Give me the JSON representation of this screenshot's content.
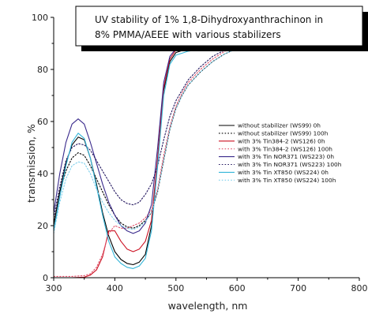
{
  "chart_data": {
    "type": "line",
    "title_lines": [
      "UV stability of 1% 1,8-Dihydroxyanthrachinon in",
      "8%  PMMA/AEEE  with various stabilizers"
    ],
    "xlabel": "wavelength, nm",
    "ylabel": "transmission, %",
    "xlim": [
      300,
      800
    ],
    "ylim": [
      0,
      100
    ],
    "xticks": [
      300,
      400,
      500,
      600,
      700,
      800
    ],
    "yticks": [
      0,
      20,
      40,
      60,
      80,
      100
    ],
    "legend_position": "right",
    "grid": false,
    "series": [
      {
        "name": "without stabilizer (WS99) 0h",
        "color": "#000000",
        "dash": "solid",
        "points": [
          [
            300,
            20
          ],
          [
            310,
            33
          ],
          [
            320,
            44
          ],
          [
            330,
            51
          ],
          [
            340,
            54
          ],
          [
            350,
            53
          ],
          [
            360,
            46
          ],
          [
            370,
            36
          ],
          [
            380,
            25
          ],
          [
            390,
            16
          ],
          [
            400,
            10
          ],
          [
            410,
            7
          ],
          [
            420,
            5.5
          ],
          [
            430,
            5
          ],
          [
            440,
            6
          ],
          [
            450,
            9
          ],
          [
            460,
            20
          ],
          [
            470,
            45
          ],
          [
            480,
            72
          ],
          [
            490,
            83
          ],
          [
            500,
            86.5
          ],
          [
            520,
            88
          ],
          [
            560,
            89.5
          ],
          [
            600,
            90.5
          ],
          [
            650,
            91
          ],
          [
            700,
            91.3
          ],
          [
            750,
            91.5
          ],
          [
            800,
            91.5
          ]
        ]
      },
      {
        "name": "without stabilizer (WS99) 100h",
        "color": "#000000",
        "dash": "dotted",
        "points": [
          [
            300,
            21
          ],
          [
            310,
            33
          ],
          [
            320,
            41
          ],
          [
            330,
            46
          ],
          [
            340,
            48
          ],
          [
            350,
            47
          ],
          [
            360,
            43
          ],
          [
            370,
            38
          ],
          [
            380,
            33
          ],
          [
            390,
            28
          ],
          [
            400,
            24
          ],
          [
            410,
            21
          ],
          [
            420,
            19.5
          ],
          [
            430,
            19
          ],
          [
            440,
            20
          ],
          [
            450,
            22
          ],
          [
            460,
            25
          ],
          [
            470,
            33
          ],
          [
            480,
            45
          ],
          [
            490,
            57
          ],
          [
            500,
            65
          ],
          [
            510,
            70
          ],
          [
            520,
            74
          ],
          [
            540,
            79
          ],
          [
            560,
            83
          ],
          [
            580,
            86
          ],
          [
            600,
            88
          ],
          [
            650,
            89.5
          ],
          [
            700,
            90
          ],
          [
            750,
            90.3
          ],
          [
            800,
            90.5
          ]
        ]
      },
      {
        "name": "with 3% Tin384-2 (WS126) 0h",
        "color": "#cc1122",
        "dash": "solid",
        "points": [
          [
            300,
            0
          ],
          [
            330,
            0
          ],
          [
            350,
            0.2
          ],
          [
            360,
            1
          ],
          [
            370,
            3
          ],
          [
            380,
            8
          ],
          [
            390,
            18
          ],
          [
            400,
            18
          ],
          [
            410,
            14
          ],
          [
            420,
            11
          ],
          [
            430,
            10
          ],
          [
            440,
            11
          ],
          [
            450,
            14
          ],
          [
            460,
            22
          ],
          [
            470,
            46
          ],
          [
            480,
            73
          ],
          [
            490,
            84
          ],
          [
            500,
            87.5
          ],
          [
            520,
            89
          ],
          [
            560,
            90
          ],
          [
            600,
            91
          ],
          [
            650,
            91.5
          ],
          [
            700,
            91.8
          ],
          [
            750,
            92
          ],
          [
            800,
            92
          ]
        ]
      },
      {
        "name": "with 3% Tin384-2 (WS126) 100h",
        "color": "#e0506a",
        "dash": "dotted",
        "points": [
          [
            300,
            0.5
          ],
          [
            330,
            0.5
          ],
          [
            350,
            0.8
          ],
          [
            360,
            1.5
          ],
          [
            370,
            4
          ],
          [
            380,
            9
          ],
          [
            390,
            17
          ],
          [
            400,
            20
          ],
          [
            410,
            19
          ],
          [
            420,
            19
          ],
          [
            430,
            20
          ],
          [
            440,
            21
          ],
          [
            450,
            23
          ],
          [
            460,
            26
          ],
          [
            470,
            34
          ],
          [
            480,
            47
          ],
          [
            490,
            58
          ],
          [
            500,
            66
          ],
          [
            510,
            71
          ],
          [
            520,
            75
          ],
          [
            540,
            80
          ],
          [
            560,
            84
          ],
          [
            580,
            87
          ],
          [
            600,
            88.5
          ],
          [
            650,
            90
          ],
          [
            700,
            90.5
          ],
          [
            750,
            90.8
          ],
          [
            800,
            91
          ]
        ]
      },
      {
        "name": "with 3% Tin NOR371 (WS223) 0h",
        "color": "#3a2a8c",
        "dash": "solid",
        "points": [
          [
            300,
            25
          ],
          [
            310,
            40
          ],
          [
            320,
            52
          ],
          [
            330,
            59
          ],
          [
            340,
            61
          ],
          [
            350,
            59
          ],
          [
            360,
            52
          ],
          [
            370,
            44
          ],
          [
            380,
            36
          ],
          [
            390,
            29
          ],
          [
            400,
            24
          ],
          [
            410,
            20
          ],
          [
            420,
            18
          ],
          [
            430,
            17
          ],
          [
            440,
            18
          ],
          [
            450,
            21
          ],
          [
            460,
            28
          ],
          [
            470,
            50
          ],
          [
            480,
            75
          ],
          [
            490,
            85
          ],
          [
            500,
            88
          ],
          [
            520,
            89.5
          ],
          [
            560,
            90.5
          ],
          [
            600,
            91.5
          ],
          [
            650,
            92
          ],
          [
            700,
            92
          ],
          [
            750,
            92.2
          ],
          [
            800,
            92.2
          ]
        ]
      },
      {
        "name": "with 3% Tin NOR371 (WS223) 100h",
        "color": "#241860",
        "dash": "dotted",
        "points": [
          [
            300,
            23
          ],
          [
            310,
            35
          ],
          [
            320,
            45
          ],
          [
            330,
            50
          ],
          [
            340,
            51.5
          ],
          [
            350,
            51
          ],
          [
            360,
            49
          ],
          [
            370,
            45
          ],
          [
            380,
            41
          ],
          [
            390,
            37
          ],
          [
            400,
            33
          ],
          [
            410,
            30
          ],
          [
            420,
            28.5
          ],
          [
            430,
            28
          ],
          [
            440,
            29
          ],
          [
            450,
            32
          ],
          [
            460,
            36
          ],
          [
            470,
            43
          ],
          [
            480,
            53
          ],
          [
            490,
            62
          ],
          [
            500,
            68
          ],
          [
            510,
            72
          ],
          [
            520,
            76
          ],
          [
            540,
            81
          ],
          [
            560,
            85
          ],
          [
            580,
            87.5
          ],
          [
            600,
            89
          ],
          [
            650,
            90.5
          ],
          [
            700,
            91
          ],
          [
            750,
            91.2
          ],
          [
            800,
            91.3
          ]
        ]
      },
      {
        "name": "with 3% Tin XT850 (WS224) 0h",
        "color": "#33b5d8",
        "dash": "solid",
        "points": [
          [
            300,
            18
          ],
          [
            310,
            31
          ],
          [
            320,
            43
          ],
          [
            330,
            52
          ],
          [
            340,
            55.5
          ],
          [
            350,
            53.5
          ],
          [
            360,
            46
          ],
          [
            370,
            35
          ],
          [
            380,
            24
          ],
          [
            390,
            14
          ],
          [
            400,
            8
          ],
          [
            410,
            5.5
          ],
          [
            420,
            4
          ],
          [
            430,
            3.5
          ],
          [
            440,
            4.5
          ],
          [
            450,
            7.5
          ],
          [
            460,
            18
          ],
          [
            470,
            43
          ],
          [
            480,
            70
          ],
          [
            490,
            82
          ],
          [
            500,
            85.5
          ],
          [
            520,
            87
          ],
          [
            560,
            88.5
          ],
          [
            600,
            89.5
          ],
          [
            650,
            90
          ],
          [
            700,
            90.5
          ],
          [
            750,
            90.8
          ],
          [
            800,
            91
          ]
        ]
      },
      {
        "name": "with 3% Tin XT850 (WS224) 100h",
        "color": "#7fd0ec",
        "dash": "dotted",
        "points": [
          [
            300,
            17
          ],
          [
            310,
            29
          ],
          [
            320,
            38
          ],
          [
            330,
            43
          ],
          [
            340,
            44.5
          ],
          [
            350,
            44
          ],
          [
            360,
            40
          ],
          [
            370,
            34
          ],
          [
            380,
            29
          ],
          [
            390,
            25
          ],
          [
            400,
            22
          ],
          [
            410,
            20
          ],
          [
            420,
            19
          ],
          [
            430,
            18.5
          ],
          [
            440,
            19.5
          ],
          [
            450,
            21.5
          ],
          [
            460,
            25
          ],
          [
            470,
            33
          ],
          [
            480,
            45
          ],
          [
            490,
            57
          ],
          [
            500,
            65
          ],
          [
            510,
            70
          ],
          [
            520,
            74
          ],
          [
            540,
            79
          ],
          [
            560,
            83
          ],
          [
            580,
            86
          ],
          [
            600,
            88
          ],
          [
            650,
            89.5
          ],
          [
            700,
            90
          ],
          [
            750,
            90.2
          ],
          [
            800,
            90.3
          ]
        ]
      }
    ]
  }
}
